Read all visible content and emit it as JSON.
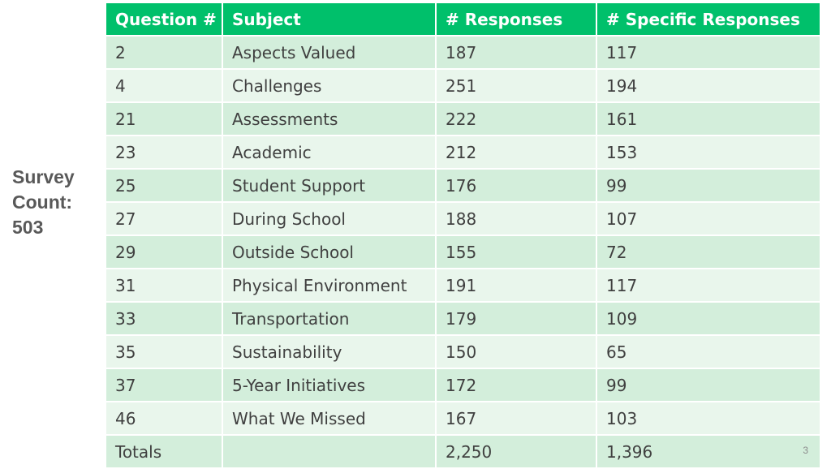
{
  "side_label": {
    "line1": "Survey",
    "line2": "Count:",
    "line3": "503"
  },
  "table": {
    "headers": [
      "Question #",
      "Subject",
      "# Responses",
      "# Specific Responses"
    ],
    "rows": [
      {
        "question": "2",
        "subject": "Aspects Valued",
        "responses": "187",
        "specific": "117"
      },
      {
        "question": "4",
        "subject": "Challenges",
        "responses": "251",
        "specific": "194"
      },
      {
        "question": "21",
        "subject": "Assessments",
        "responses": "222",
        "specific": "161"
      },
      {
        "question": "23",
        "subject": "Academic",
        "responses": "212",
        "specific": "153"
      },
      {
        "question": "25",
        "subject": "Student Support",
        "responses": "176",
        "specific": "99"
      },
      {
        "question": "27",
        "subject": "During School",
        "responses": "188",
        "specific": "107"
      },
      {
        "question": "29",
        "subject": "Outside School",
        "responses": "155",
        "specific": "72"
      },
      {
        "question": "31",
        "subject": "Physical Environment",
        "responses": "191",
        "specific": "117"
      },
      {
        "question": "33",
        "subject": "Transportation",
        "responses": "179",
        "specific": "109"
      },
      {
        "question": "35",
        "subject": "Sustainability",
        "responses": "150",
        "specific": "65"
      },
      {
        "question": "37",
        "subject": "5-Year Initiatives",
        "responses": "172",
        "specific": "99"
      },
      {
        "question": "46",
        "subject": "What We Missed",
        "responses": "167",
        "specific": "103"
      }
    ],
    "totals": {
      "label": "Totals",
      "subject": "",
      "responses": "2,250",
      "specific": "1,396"
    }
  },
  "page_number": "3",
  "colors": {
    "header_bg": "#00c06b",
    "row_odd_bg": "#d3eedb",
    "row_even_bg": "#e9f6ec",
    "label_text": "#595959"
  }
}
